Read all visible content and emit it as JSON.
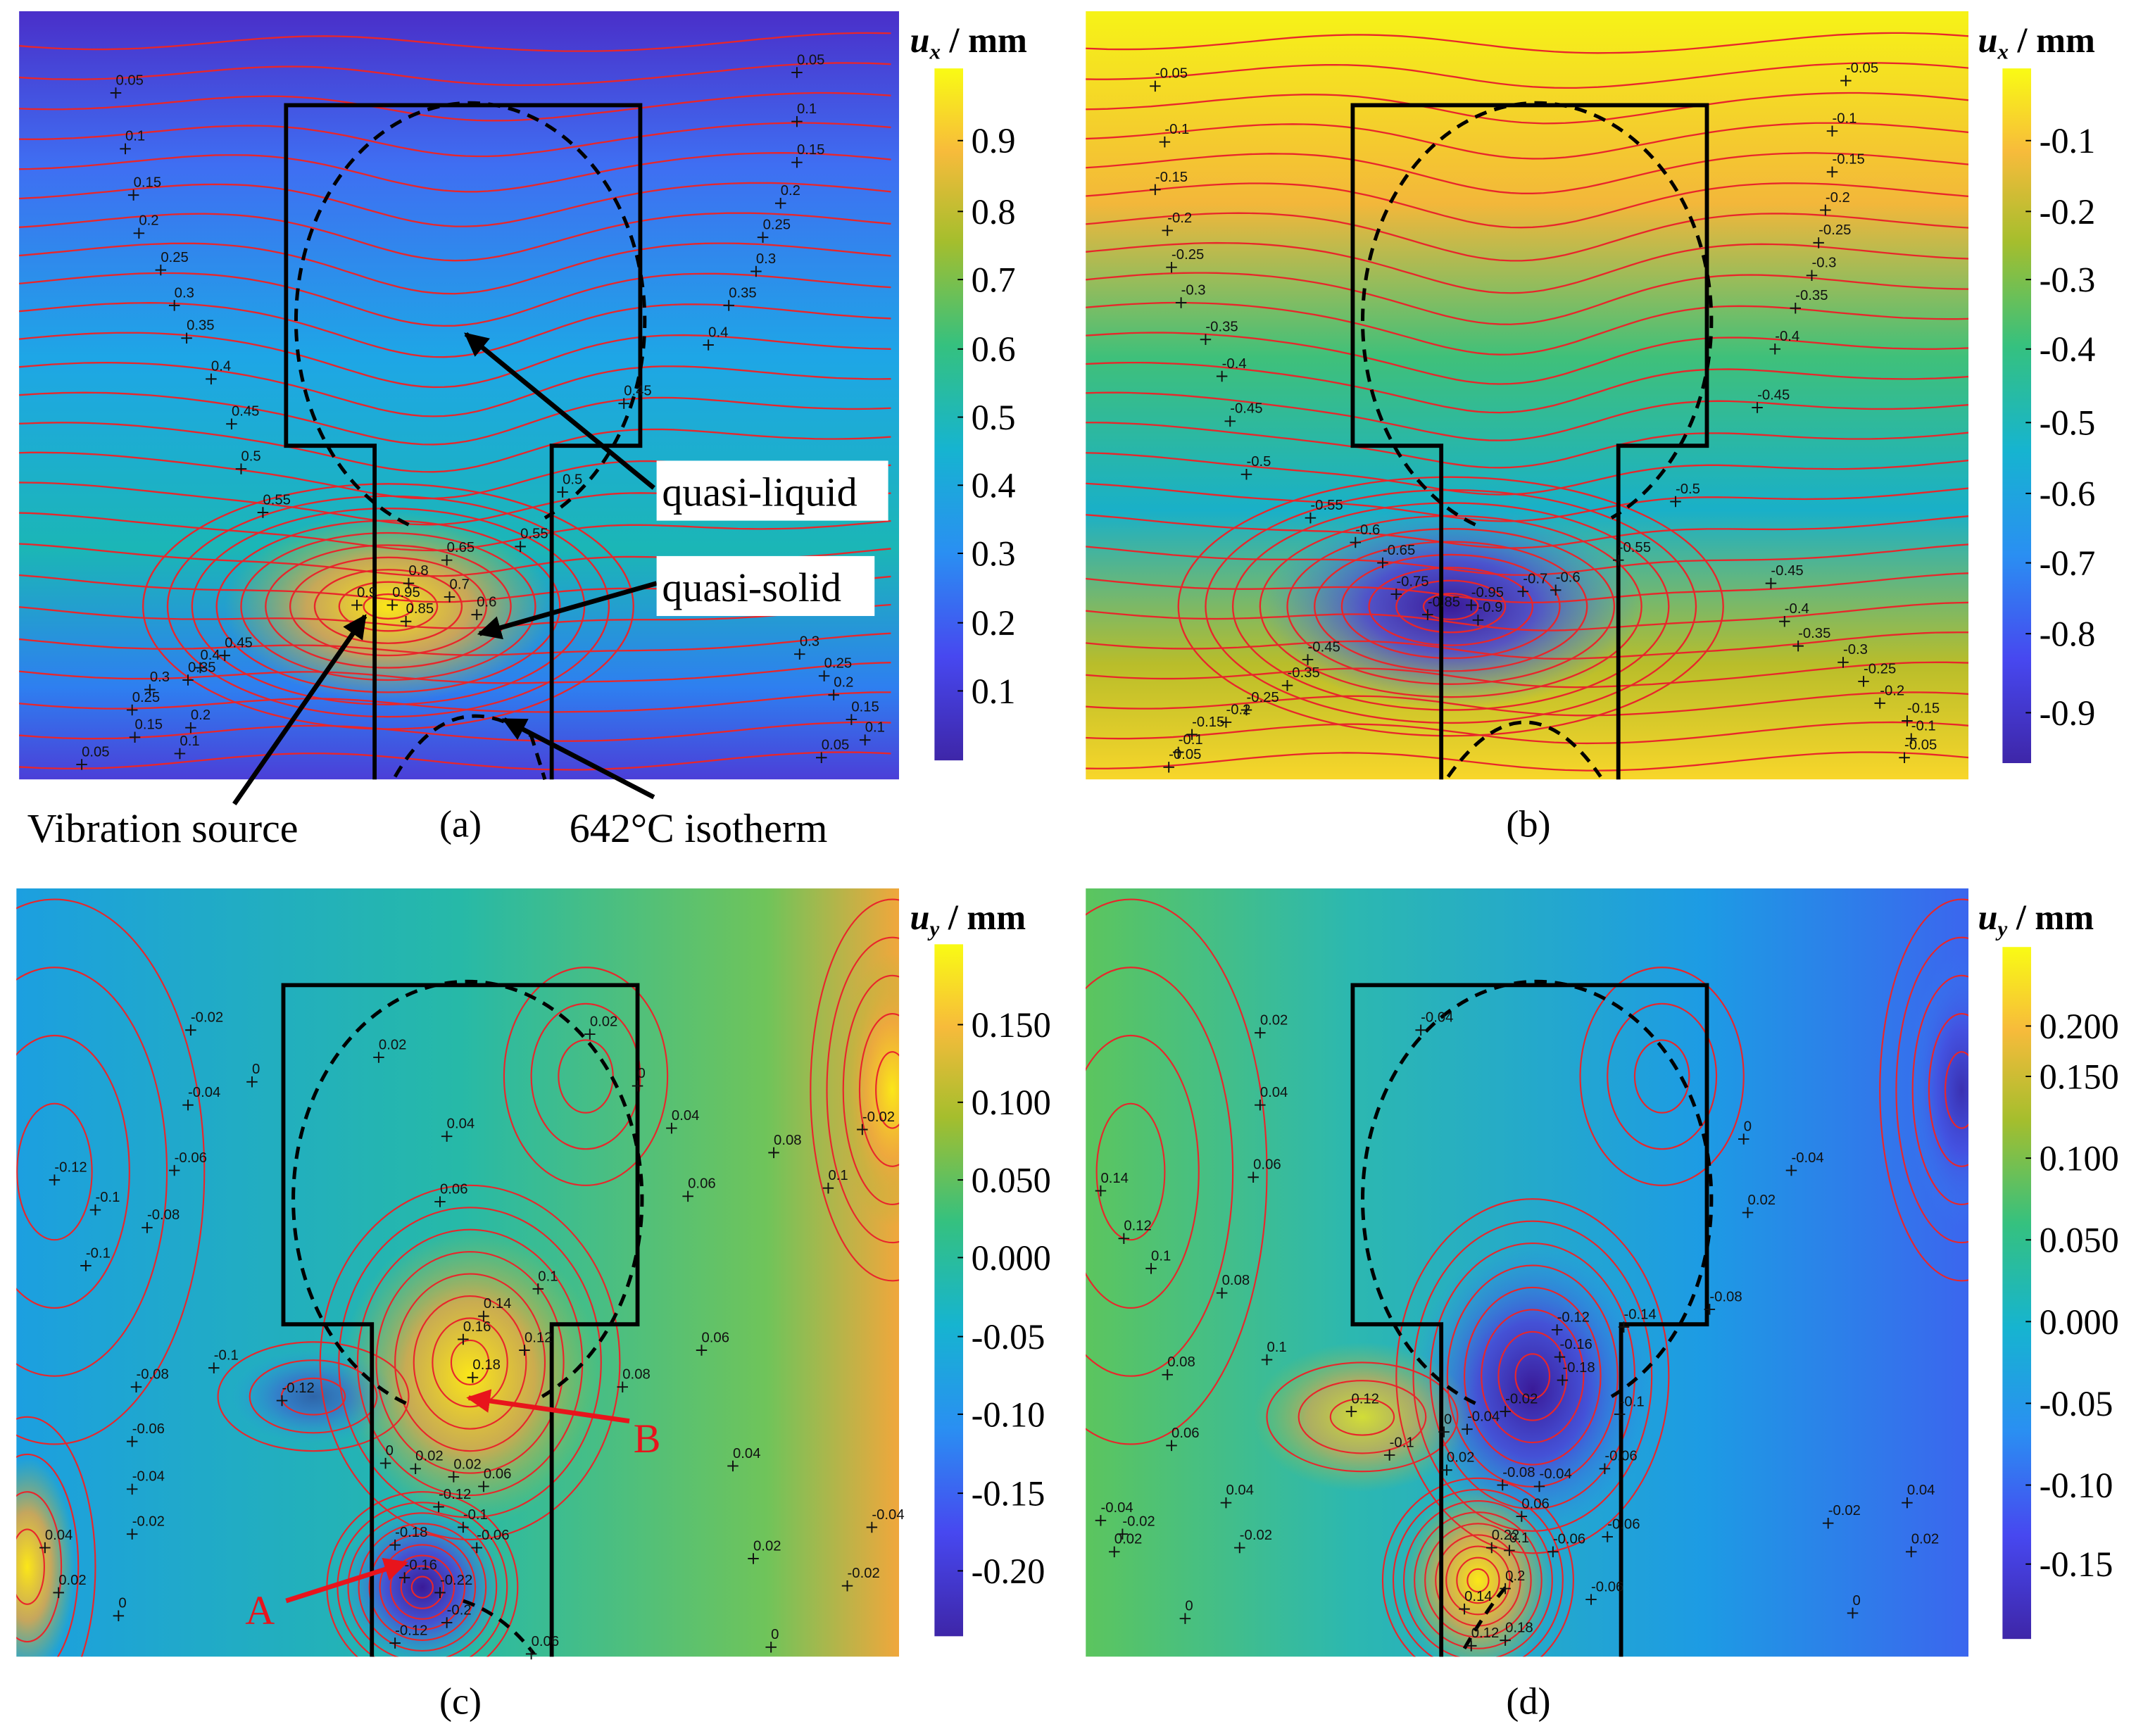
{
  "panels": [
    {
      "label": "(a)",
      "colorbar": {
        "symbol": "u",
        "subscript": "x",
        "unit": " / mm",
        "ticks": [
          "0.9",
          "0.8",
          "0.7",
          "0.6",
          "0.5",
          "0.4",
          "0.3",
          "0.2",
          "0.1"
        ]
      },
      "contour_labels": [
        "0.05",
        "0.1",
        "0.15",
        "0.2",
        "0.25",
        "0.3",
        "0.35",
        "0.4",
        "0.45",
        "0.5",
        "0.55",
        "0.05",
        "0.1",
        "0.15",
        "0.2",
        "0.25",
        "0.3",
        "0.35",
        "0.4",
        "0.45",
        "0.5",
        "0.55",
        "0.65",
        "0.8",
        "0.7",
        "0.9",
        "0.95",
        "0.85",
        "0.6",
        "0.45",
        "0.4",
        "0.35",
        "0.3",
        "0.25",
        "0.2",
        "0.15",
        "0.1",
        "0.05",
        "0.3",
        "0.25",
        "0.2",
        "0.15",
        "0.1",
        "0.05"
      ]
    },
    {
      "label": "(b)",
      "colorbar": {
        "symbol": "u",
        "subscript": "x",
        "unit": " / mm",
        "ticks": [
          "-0.1",
          "-0.2",
          "-0.3",
          "-0.4",
          "-0.5",
          "-0.6",
          "-0.7",
          "-0.8",
          "-0.9"
        ]
      },
      "contour_labels": [
        "-0.05",
        "-0.1",
        "-0.15",
        "-0.2",
        "-0.25",
        "-0.3",
        "-0.35",
        "-0.4",
        "-0.45",
        "-0.5",
        "-0.55",
        "-0.6",
        "-0.65",
        "-0.75",
        "-0.85",
        "-0.95",
        "-0.9",
        "-0.7",
        "-0.6",
        "-0.05",
        "-0.1",
        "-0.15",
        "-0.2",
        "-0.25",
        "-0.3",
        "-0.35",
        "-0.4",
        "-0.45",
        "-0.5",
        "-0.55",
        "-0.45",
        "-0.4",
        "-0.35",
        "-0.3",
        "-0.25",
        "-0.2",
        "-0.15",
        "-0.1",
        "-0.05",
        "-0.45",
        "-0.35",
        "-0.25",
        "-0.2",
        "-0.15",
        "-0.1",
        "-0.05"
      ]
    },
    {
      "label": "(c)",
      "colorbar": {
        "symbol": "u",
        "subscript": "y",
        "unit": " / mm",
        "ticks": [
          "0.150",
          "0.100",
          "0.050",
          "0.000",
          "-0.05",
          "-0.10",
          "-0.15",
          "-0.20"
        ]
      },
      "contour_labels": [
        "-0.02",
        "-0.04",
        "0",
        "-0.06",
        "-0.12",
        "-0.1",
        "-0.08",
        "-0.1",
        "0.02",
        "0.04",
        "0.06",
        "0.1",
        "0.14",
        "0.16",
        "0.12",
        "0.18",
        "0.02",
        "0",
        "0.04",
        "0.06",
        "0.08",
        "0.1",
        "-0.02",
        "0.06",
        "0.08",
        "-0.1",
        "-0.12",
        "-0.08",
        "-0.06",
        "-0.04",
        "-0.02",
        "0.04",
        "0.02",
        "0",
        "0",
        "0.02",
        "0.02",
        "0.06",
        "-0.12",
        "-0.1",
        "-0.06",
        "-0.18",
        "-0.16",
        "-0.22",
        "-0.2",
        "-0.12",
        "0.06",
        "0.04",
        "0.02",
        "0",
        "-0.04",
        "-0.02"
      ]
    },
    {
      "label": "(d)",
      "colorbar": {
        "symbol": "u",
        "subscript": "y",
        "unit": " / mm",
        "ticks": [
          "0.200",
          "0.150",
          "0.100",
          "0.050",
          "0.000",
          "-0.05",
          "-0.10",
          "-0.15"
        ]
      },
      "contour_labels": [
        "0.02",
        "0.04",
        "0.06",
        "0.14",
        "0.12",
        "0.1",
        "0.08",
        "0.08",
        "0.1",
        "0.12",
        "0.06",
        "0.04",
        "0.02",
        "-0.04",
        "-0.02",
        "0",
        "-0.02",
        "0",
        "0.02",
        "-0.04",
        "-0.08",
        "-0.14",
        "-0.12",
        "-0.16",
        "-0.18",
        "-0.1",
        "-0.02",
        "-0.04",
        "-0.06",
        "-0.06",
        "-0.08",
        "-0.1",
        "0.02",
        "0",
        "-0.04",
        "0.06",
        "0.22",
        "0.1",
        "0.14",
        "0.2",
        "0.12",
        "0.18",
        "-0.06",
        "-0.06",
        "-0.04",
        "-0.02",
        "0",
        "0.02",
        "0.04"
      ]
    }
  ],
  "annotations": {
    "quasi_liquid": "quasi-liquid",
    "quasi_solid": "quasi-solid",
    "vibration_source": "Vibration source",
    "isotherm": "642°C isotherm",
    "point_a": "A",
    "point_b": "B"
  }
}
